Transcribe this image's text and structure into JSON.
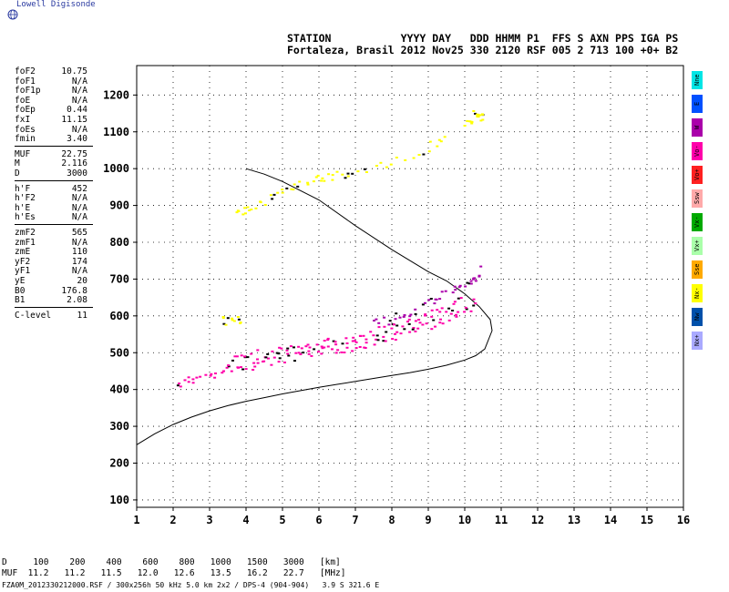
{
  "header": {
    "brand": "Lowell Digisonde",
    "line1": "STATION           YYYY DAY   DDD HHMM P1  FFS S AXN PPS IGA PS",
    "line2": "Fortaleza, Brasil 2012 Nov25 330 2120 RSF 005 2 713 100 +0+ B2"
  },
  "params": [
    [
      {
        "k": "foF2",
        "v": "10.75"
      },
      {
        "k": "foF1",
        "v": "N/A"
      },
      {
        "k": "foF1p",
        "v": "N/A"
      },
      {
        "k": "foE",
        "v": "N/A"
      },
      {
        "k": "foEp",
        "v": "0.44"
      },
      {
        "k": "fxI",
        "v": "11.15"
      },
      {
        "k": "foEs",
        "v": "N/A"
      },
      {
        "k": "fmin",
        "v": "3.40"
      }
    ],
    [
      {
        "k": "MUF",
        "v": "22.75"
      },
      {
        "k": "M",
        "v": "2.116"
      },
      {
        "k": "D",
        "v": "3000"
      }
    ],
    [
      {
        "k": "h'F",
        "v": "452"
      },
      {
        "k": "h'F2",
        "v": "N/A"
      },
      {
        "k": "h'E",
        "v": "N/A"
      },
      {
        "k": "h'Es",
        "v": "N/A"
      }
    ],
    [
      {
        "k": "zmF2",
        "v": "565"
      },
      {
        "k": "zmF1",
        "v": "N/A"
      },
      {
        "k": "zmE",
        "v": "110"
      },
      {
        "k": "yF2",
        "v": "174"
      },
      {
        "k": "yF1",
        "v": "N/A"
      },
      {
        "k": "yE",
        "v": "20"
      },
      {
        "k": "B0",
        "v": "176.8"
      },
      {
        "k": "B1",
        "v": "2.08"
      }
    ],
    [
      {
        "k": "C-level",
        "v": "11"
      }
    ]
  ],
  "legend": [
    {
      "label": "Nne",
      "color": "#00e5e5"
    },
    {
      "label": "E",
      "color": "#0050ff"
    },
    {
      "label": "W",
      "color": "#aa00aa"
    },
    {
      "label": "Vo-",
      "color": "#ff00aa"
    },
    {
      "label": "Vo+",
      "color": "#ff2020"
    },
    {
      "label": "Ssw",
      "color": "#ffaaaa"
    },
    {
      "label": "Vx-",
      "color": "#00aa00"
    },
    {
      "label": "Vx+",
      "color": "#aaffaa"
    },
    {
      "label": "Sse",
      "color": "#ffaa00"
    },
    {
      "label": "Nx-",
      "color": "#ffff00"
    },
    {
      "label": "Nw",
      "color": "#0050aa"
    },
    {
      "label": "Nx+",
      "color": "#aaaaff"
    }
  ],
  "footer": {
    "row1": "D     100    200    400    600    800   1000   1500   3000   [km]",
    "row2": "MUF  11.2   11.2   11.5   12.0   12.6   13.5   16.2   22.7   [MHz]",
    "row3": "FZA0M_2012330212000.RSF / 300x256h 50 kHz 5.0 km 2x2 / DPS-4 (904-904)   3.9 S 321.6 E"
  },
  "chart_data": {
    "type": "scatter",
    "xlim": [
      1,
      16
    ],
    "ylim": [
      80,
      1280
    ],
    "xticks": [
      1,
      2,
      3,
      4,
      5,
      6,
      7,
      8,
      9,
      10,
      11,
      12,
      13,
      14,
      15,
      16
    ],
    "yticks": [
      100,
      200,
      300,
      400,
      500,
      600,
      700,
      800,
      900,
      1000,
      1100,
      1200
    ],
    "grid": true,
    "profile_curve": {
      "x": [
        0.98,
        1.5,
        2.0,
        2.5,
        3.0,
        3.5,
        4.0,
        4.5,
        5.0,
        5.5,
        6.0,
        6.5,
        7.0,
        7.5,
        8.0,
        8.5,
        9.0,
        9.5,
        10.0,
        10.3,
        10.55,
        10.75,
        10.7,
        10.4,
        10.0,
        9.5,
        9.0,
        8.0,
        7.0,
        6.0,
        5.0,
        4.5,
        4.0
      ],
      "y": [
        250,
        280,
        305,
        325,
        342,
        356,
        368,
        378,
        388,
        397,
        406,
        414,
        422,
        430,
        438,
        446,
        455,
        466,
        480,
        492,
        510,
        560,
        590,
        625,
        660,
        695,
        720,
        780,
        845,
        915,
        965,
        985,
        1000
      ]
    },
    "traces": [
      {
        "name": "o-lower",
        "color": "#ff00aa",
        "x": [
          2.1,
          2.5,
          3.0,
          3.5,
          4.0,
          4.5,
          5.0,
          5.5,
          6.0,
          6.5,
          7.0,
          7.5,
          8.0,
          8.5,
          9.0,
          9.5,
          10.0,
          10.3
        ],
        "y": [
          415,
          430,
          440,
          455,
          465,
          475,
          485,
          493,
          503,
          512,
          520,
          530,
          545,
          560,
          578,
          595,
          618,
          640
        ]
      },
      {
        "name": "o-upper",
        "color": "#ff00aa",
        "x": [
          3.5,
          4.0,
          4.5,
          5.0,
          5.5,
          6.0,
          6.5,
          7.0,
          7.5,
          8.0,
          8.5,
          9.0,
          9.5,
          10.0
        ],
        "y": [
          480,
          492,
          500,
          508,
          515,
          524,
          532,
          542,
          555,
          570,
          588,
          605,
          625,
          650
        ]
      },
      {
        "name": "x-trace",
        "color": "#aa00aa",
        "x": [
          7.5,
          8.0,
          8.5,
          9.0,
          9.5,
          10.0,
          10.2,
          10.4
        ],
        "y": [
          580,
          595,
          615,
          640,
          665,
          680,
          700,
          730
        ]
      },
      {
        "name": "spread-high",
        "color": "#ffff00",
        "x": [
          3.7,
          4.0,
          4.5,
          5.0,
          5.5,
          6.0,
          6.5,
          7.0,
          8.0,
          9.0,
          9.5
        ],
        "y": [
          880,
          890,
          915,
          940,
          960,
          975,
          985,
          995,
          1020,
          1060,
          1080
        ]
      },
      {
        "name": "spread-top",
        "color": "#ffff00",
        "x": [
          10.0,
          10.2,
          10.4,
          10.5
        ],
        "y": [
          1120,
          1140,
          1160,
          1130
        ]
      },
      {
        "name": "es-patch",
        "color": "#ffff00",
        "x": [
          3.3,
          3.6,
          3.9
        ],
        "y": [
          588,
          590,
          595
        ]
      }
    ]
  }
}
